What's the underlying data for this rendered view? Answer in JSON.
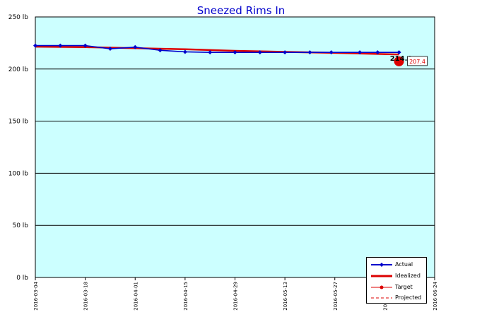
{
  "chart_data": {
    "type": "line",
    "title": "Sneezed Rims In",
    "ylim": [
      0,
      250
    ],
    "y_ticks": [
      "0 lb",
      "50 lb",
      "100 lb",
      "150 lb",
      "200 lb",
      "250 lb"
    ],
    "x_range": [
      "2016-03-04",
      "2016-06-24"
    ],
    "x_ticks": [
      "2016-03-04",
      "2016-03-18",
      "2016-04-01",
      "2016-04-15",
      "2016-04-29",
      "2016-05-13",
      "2016-05-27",
      "2016-06-10",
      "2016-06-24"
    ],
    "grid": true,
    "legend_position": "bottom-right",
    "colors": {
      "plot_bg": "#ccffff",
      "actual": "#0000cc",
      "idealized": "#dd0000",
      "target": "#dd0000",
      "projected": "#dd0000"
    },
    "series": [
      {
        "name": "Actual",
        "x": [
          "2016-03-04",
          "2016-03-11",
          "2016-03-18",
          "2016-03-25",
          "2016-04-01",
          "2016-04-08",
          "2016-04-15",
          "2016-04-22",
          "2016-04-29",
          "2016-05-06",
          "2016-05-13",
          "2016-05-20",
          "2016-05-26",
          "2016-06-03",
          "2016-06-08",
          "2016-06-14"
        ],
        "values": [
          222.5,
          222.5,
          222.5,
          219.5,
          221.0,
          218.0,
          216.5,
          216.0,
          216.0,
          216.0,
          216.0,
          216.0,
          216.0,
          216.0,
          216.0,
          216.0
        ]
      },
      {
        "name": "Idealized",
        "x": [
          "2016-03-04",
          "2016-03-18",
          "2016-04-01",
          "2016-04-15",
          "2016-04-29",
          "2016-05-13",
          "2016-05-27",
          "2016-06-14"
        ],
        "values": [
          221.5,
          221.0,
          220.0,
          219.0,
          217.5,
          216.5,
          215.5,
          214.0
        ]
      },
      {
        "name": "Target",
        "x": [
          "2016-06-14"
        ],
        "values": [
          207.4
        ],
        "label": "207.4"
      },
      {
        "name": "Projected",
        "x": [],
        "values": []
      }
    ],
    "annotations": [
      {
        "text": "214.0",
        "x": "2016-06-14",
        "y": 214.0
      }
    ]
  }
}
